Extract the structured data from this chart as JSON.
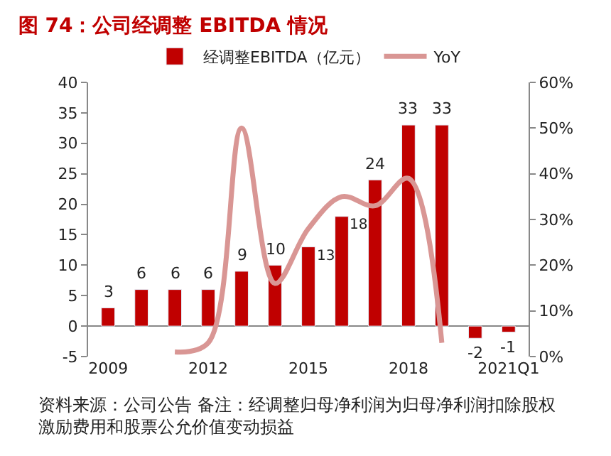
{
  "chart_data": {
    "type": "bar",
    "title": "图 74：公司经调整 EBITDA 情况",
    "categories": [
      "2009",
      null,
      null,
      "2012",
      null,
      null,
      "2015",
      null,
      null,
      "2018",
      null,
      null,
      "2021Q1"
    ],
    "series": [
      {
        "name": "经调整EBITDA（亿元）",
        "color": "#c00000",
        "values": [
          3,
          6,
          6,
          6,
          9,
          10,
          13,
          18,
          24,
          33,
          33,
          -2,
          -1
        ],
        "value_labels": [
          "3",
          "6",
          "6",
          "6",
          "9",
          "10",
          "13",
          "18",
          "24",
          "33",
          "33",
          "-2",
          "-1"
        ]
      },
      {
        "name": "YoY",
        "type": "line",
        "axis": "y2",
        "color": "#d99694",
        "values": [
          null,
          null,
          1,
          3,
          50,
          16,
          28,
          35,
          33,
          39,
          3,
          null,
          null
        ]
      }
    ],
    "ylim": [
      -5,
      40
    ],
    "yticks": [
      -5,
      0,
      5,
      10,
      15,
      20,
      25,
      30,
      35,
      40
    ],
    "y2lim": [
      0,
      60
    ],
    "y2ticks": [
      {
        "value": 0,
        "label": "0%"
      },
      {
        "value": 10,
        "label": "10%"
      },
      {
        "value": 20,
        "label": "20%"
      },
      {
        "value": 30,
        "label": "30%"
      },
      {
        "value": 40,
        "label": "40%"
      },
      {
        "value": 50,
        "label": "50%"
      },
      {
        "value": 60,
        "label": "60%"
      }
    ],
    "legend": "top",
    "marker": "none",
    "line_style": "solid",
    "annotations": [
      "资料来源：公司公告 备注：经调整归母净利润为归母净利润扣除股权激励费用和股票公允价值变动损益"
    ]
  }
}
